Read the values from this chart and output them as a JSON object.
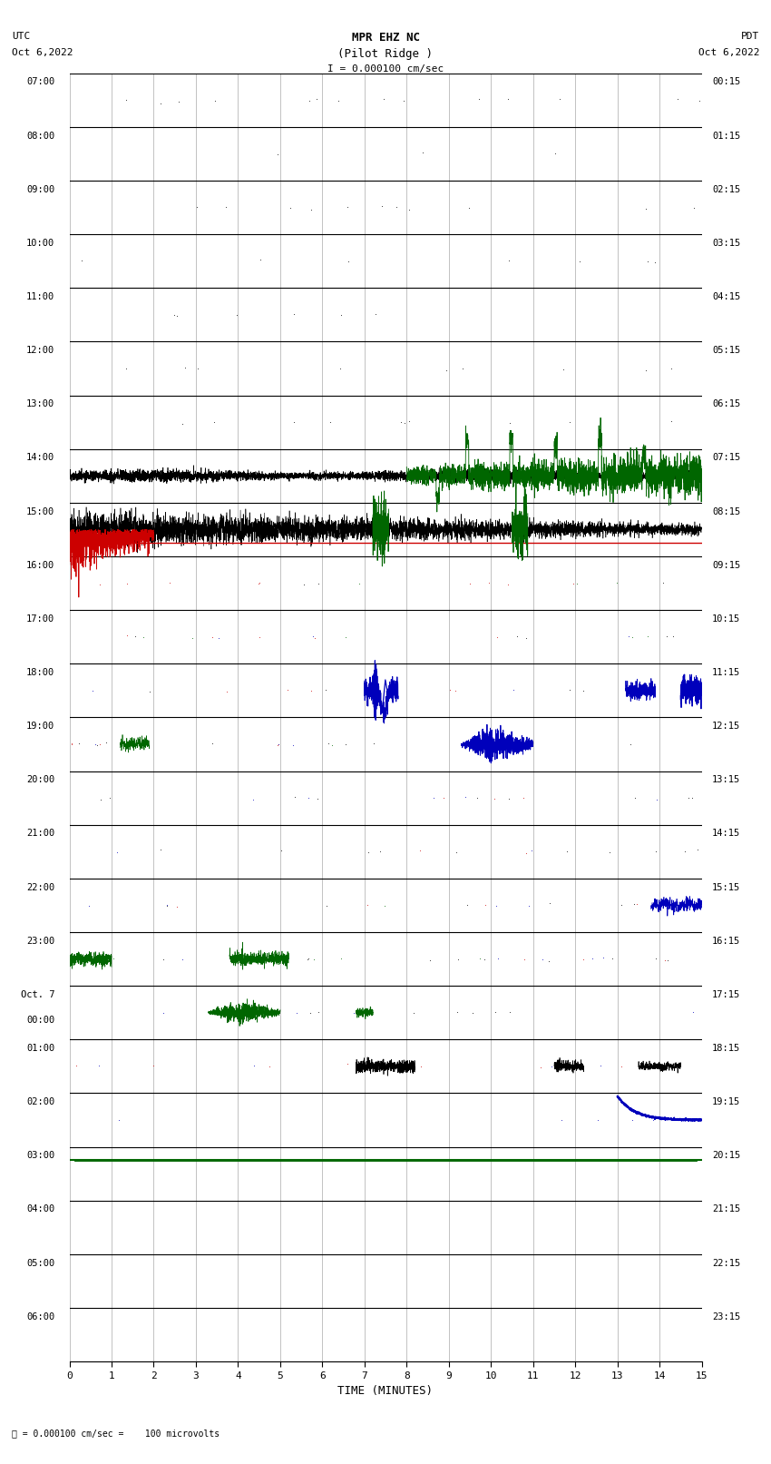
{
  "title_line1": "MPR EHZ NC",
  "title_line2": "(Pilot Ridge )",
  "title_line3": "I = 0.000100 cm/sec",
  "label_left_top": "UTC",
  "label_left_date": "Oct 6,2022",
  "label_right_top": "PDT",
  "label_right_date": "Oct 6,2022",
  "footer_text": "= 0.000100 cm/sec =    100 microvolts",
  "xlabel": "TIME (MINUTES)",
  "left_yticks": [
    "07:00",
    "08:00",
    "09:00",
    "10:00",
    "11:00",
    "12:00",
    "13:00",
    "14:00",
    "15:00",
    "16:00",
    "17:00",
    "18:00",
    "19:00",
    "20:00",
    "21:00",
    "22:00",
    "23:00",
    "Oct. 7\n00:00",
    "01:00",
    "02:00",
    "03:00",
    "04:00",
    "05:00",
    "06:00"
  ],
  "right_yticks": [
    "00:15",
    "01:15",
    "02:15",
    "03:15",
    "04:15",
    "05:15",
    "06:15",
    "07:15",
    "08:15",
    "09:15",
    "10:15",
    "11:15",
    "12:15",
    "13:15",
    "14:15",
    "15:15",
    "16:15",
    "17:15",
    "18:15",
    "19:15",
    "20:15",
    "21:15",
    "22:15",
    "23:15"
  ],
  "num_rows": 24,
  "minutes": 15,
  "bg_color": "#ffffff",
  "grid_color": "#aaaaaa",
  "signal_black": "#000000",
  "signal_red": "#cc0000",
  "signal_green": "#006600",
  "signal_blue": "#0000bb",
  "bar_color": "#aaaaff",
  "fig_width": 8.5,
  "fig_height": 16.13
}
